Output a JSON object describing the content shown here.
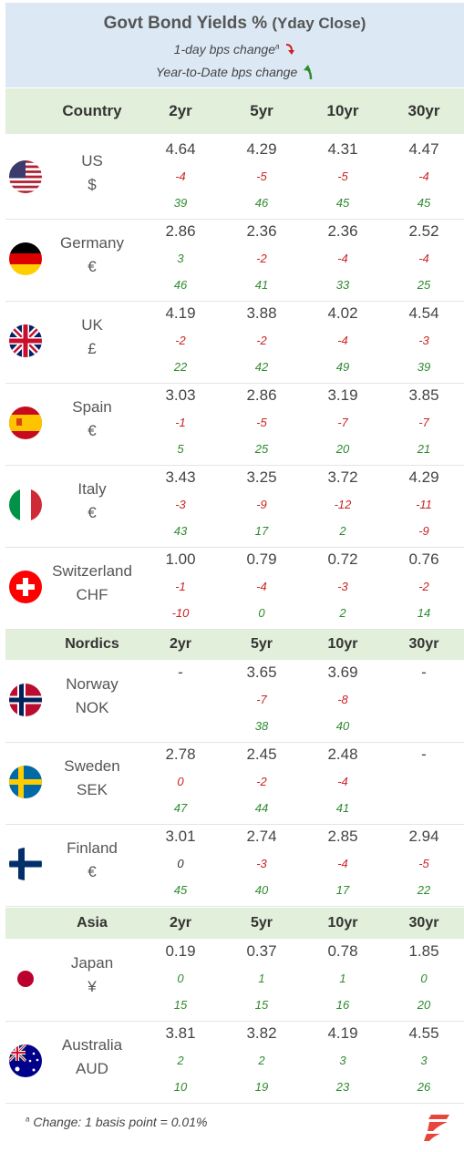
{
  "header": {
    "title": "Govt Bond Yields %",
    "title_sub": "(Yday Close)",
    "legend_day": "1-day bps change",
    "legend_day_sup": "a",
    "legend_ytd": "Year-to-Date bps change"
  },
  "columns": [
    "2yr",
    "5yr",
    "10yr",
    "30yr"
  ],
  "sections": {
    "main": "Country",
    "nordics": "Nordics",
    "asia": "Asia"
  },
  "rows": [
    {
      "name": "US",
      "ccy": "$",
      "flag": "us-flag-icon",
      "v": [
        {
          "y": "4.64",
          "d": "-4",
          "t": "39"
        },
        {
          "y": "4.29",
          "d": "-5",
          "t": "46"
        },
        {
          "y": "4.31",
          "d": "-5",
          "t": "45"
        },
        {
          "y": "4.47",
          "d": "-4",
          "t": "45"
        }
      ]
    },
    {
      "name": "Germany",
      "ccy": "€",
      "flag": "germany-flag-icon",
      "v": [
        {
          "y": "2.86",
          "d": "3",
          "t": "46"
        },
        {
          "y": "2.36",
          "d": "-2",
          "t": "41"
        },
        {
          "y": "2.36",
          "d": "-4",
          "t": "33"
        },
        {
          "y": "2.52",
          "d": "-4",
          "t": "25"
        }
      ]
    },
    {
      "name": "UK",
      "ccy": "£",
      "flag": "uk-flag-icon",
      "v": [
        {
          "y": "4.19",
          "d": "-2",
          "t": "22"
        },
        {
          "y": "3.88",
          "d": "-2",
          "t": "42"
        },
        {
          "y": "4.02",
          "d": "-4",
          "t": "49"
        },
        {
          "y": "4.54",
          "d": "-3",
          "t": "39"
        }
      ]
    },
    {
      "name": "Spain",
      "ccy": "€",
      "flag": "spain-flag-icon",
      "v": [
        {
          "y": "3.03",
          "d": "-1",
          "t": "5"
        },
        {
          "y": "2.86",
          "d": "-5",
          "t": "25"
        },
        {
          "y": "3.19",
          "d": "-7",
          "t": "20"
        },
        {
          "y": "3.85",
          "d": "-7",
          "t": "21"
        }
      ]
    },
    {
      "name": "Italy",
      "ccy": "€",
      "flag": "italy-flag-icon",
      "v": [
        {
          "y": "3.43",
          "d": "-3",
          "t": "43"
        },
        {
          "y": "3.25",
          "d": "-9",
          "t": "17"
        },
        {
          "y": "3.72",
          "d": "-12",
          "t": "2"
        },
        {
          "y": "4.29",
          "d": "-11",
          "t": "-9"
        }
      ]
    },
    {
      "name": "Switzerland",
      "ccy": "CHF",
      "flag": "switzerland-flag-icon",
      "v": [
        {
          "y": "1.00",
          "d": "-1",
          "t": "-10"
        },
        {
          "y": "0.79",
          "d": "-4",
          "t": "0"
        },
        {
          "y": "0.72",
          "d": "-3",
          "t": "2"
        },
        {
          "y": "0.76",
          "d": "-2",
          "t": "14"
        }
      ]
    },
    {
      "name": "Norway",
      "ccy": "NOK",
      "flag": "norway-flag-icon",
      "v": [
        {
          "y": "-",
          "d": "",
          "t": ""
        },
        {
          "y": "3.65",
          "d": "-7",
          "t": "38"
        },
        {
          "y": "3.69",
          "d": "-8",
          "t": "40"
        },
        {
          "y": "-",
          "d": "",
          "t": ""
        }
      ]
    },
    {
      "name": "Sweden",
      "ccy": "SEK",
      "flag": "sweden-flag-icon",
      "v": [
        {
          "y": "2.78",
          "d": "0",
          "t": "47"
        },
        {
          "y": "2.45",
          "d": "-2",
          "t": "44"
        },
        {
          "y": "2.48",
          "d": "-4",
          "t": "41"
        },
        {
          "y": "-",
          "d": "",
          "t": ""
        }
      ]
    },
    {
      "name": "Finland",
      "ccy": "€",
      "flag": "finland-flag-icon",
      "v": [
        {
          "y": "3.01",
          "d": "0",
          "t": "45"
        },
        {
          "y": "2.74",
          "d": "-3",
          "t": "40"
        },
        {
          "y": "2.85",
          "d": "-4",
          "t": "17"
        },
        {
          "y": "2.94",
          "d": "-5",
          "t": "22"
        }
      ]
    },
    {
      "name": "Japan",
      "ccy": "¥",
      "flag": "japan-flag-icon",
      "v": [
        {
          "y": "0.19",
          "d": "0",
          "t": "15"
        },
        {
          "y": "0.37",
          "d": "1",
          "t": "15"
        },
        {
          "y": "0.78",
          "d": "1",
          "t": "16"
        },
        {
          "y": "1.85",
          "d": "0",
          "t": "20"
        }
      ]
    },
    {
      "name": "Australia",
      "ccy": "AUD",
      "flag": "australia-flag-icon",
      "v": [
        {
          "y": "3.81",
          "d": "2",
          "t": "10"
        },
        {
          "y": "3.82",
          "d": "2",
          "t": "19"
        },
        {
          "y": "4.19",
          "d": "3",
          "t": "23"
        },
        {
          "y": "4.55",
          "d": "3",
          "t": "26"
        }
      ]
    }
  ],
  "colors": {
    "up": "#2e8b2e",
    "down": "#cc2222",
    "header_bg": "#dce9f5",
    "section_bg": "#e2efda",
    "logo": "#e8453c"
  },
  "footer": {
    "note_sup": "a",
    "note": "Change: 1 basis point = 0.01%"
  }
}
